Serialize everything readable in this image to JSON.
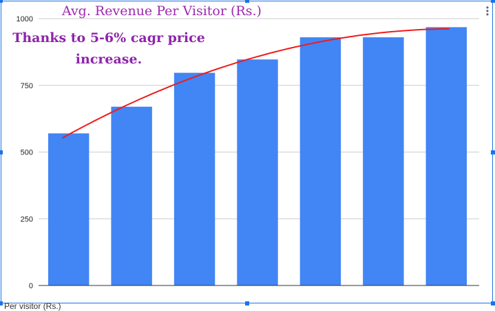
{
  "footer_label": "Per visitor (Rs.)",
  "menu_icon": "more-vert-icon",
  "colors": {
    "bar": "#4285f4",
    "trend": "#ee1c1c",
    "title": "#9c27b0",
    "annotation": "#8e24aa",
    "selection": "#1a73e8"
  },
  "chart_data": {
    "type": "bar",
    "title": "Avg. Revenue Per Visitor (Rs.)",
    "annotation": "Thanks to 5-6% cagr price increase.",
    "categories": [
      "",
      "",
      "",
      "",
      "",
      "",
      ""
    ],
    "series": [
      {
        "values": [
          570,
          670,
          797,
          847,
          930,
          930,
          968
        ]
      }
    ],
    "trendline": {
      "type": "polynomial",
      "color": "#ee1c1c"
    },
    "ylim": [
      0,
      1000
    ],
    "yticks": [
      0,
      250,
      500,
      750,
      1000
    ],
    "grid": true,
    "xlabel": "",
    "ylabel": ""
  }
}
